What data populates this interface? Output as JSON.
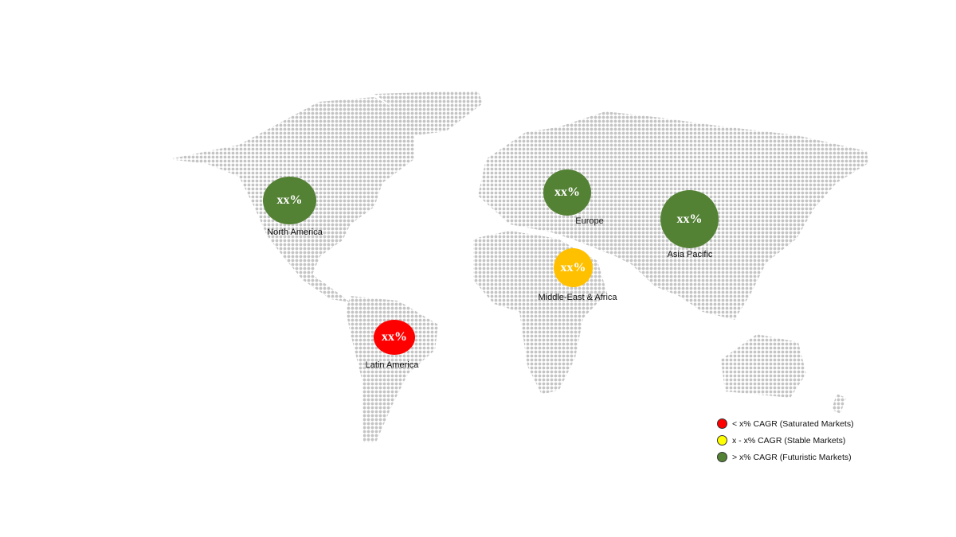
{
  "regions": [
    {
      "name": "North America",
      "value": "xx%",
      "color": "#548235"
    },
    {
      "name": "Europe",
      "value": "xx%",
      "color": "#548235"
    },
    {
      "name": "Asia Pacific",
      "value": "xx%",
      "color": "#548235"
    },
    {
      "name": "Middle-East & Africa",
      "value": "xx%",
      "color": "#ffc000"
    },
    {
      "name": "Latin America",
      "value": "xx%",
      "color": "#ff0000"
    }
  ],
  "legend": [
    {
      "label": "< x% CAGR (Saturated Markets)",
      "color": "#ff0000"
    },
    {
      "label": "x - x% CAGR (Stable Markets)",
      "color": "#ffff00"
    },
    {
      "label": "> x% CAGR (Futuristic Markets)",
      "color": "#548235"
    }
  ],
  "map_dot_color": "#c4c4c4"
}
